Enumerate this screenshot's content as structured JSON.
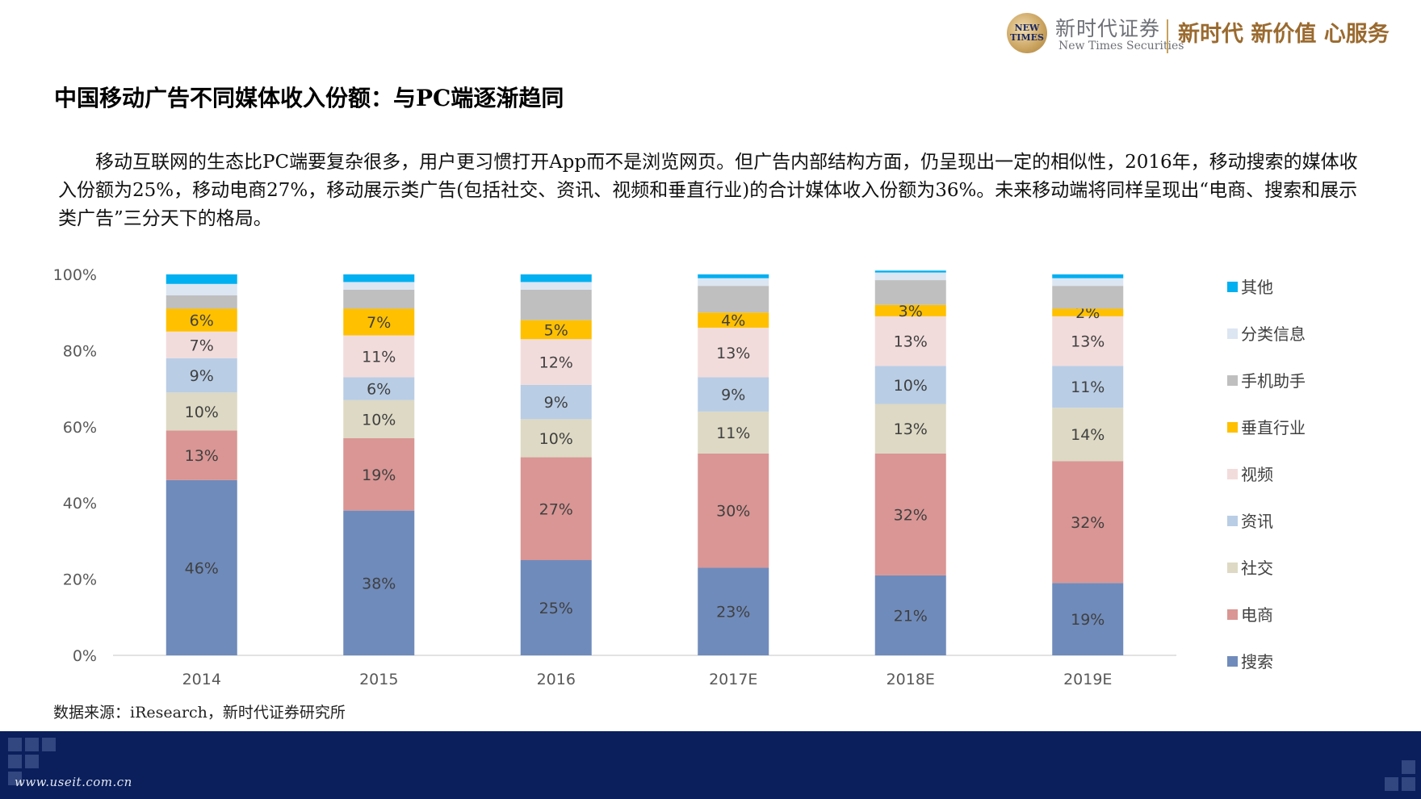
{
  "brand": {
    "seal_text": "NEW TIMES",
    "name_cn": "新时代证券",
    "name_en": "New Times Securities",
    "slogan": "新时代 新价值 心服务"
  },
  "page_title": "中国移动广告不同媒体收入份额：与PC端逐渐趋同",
  "intro_text": "移动互联网的生态比PC端要复杂很多，用户更习惯打开App而不是浏览网页。但广告内部结构方面，仍呈现出一定的相似性，2016年，移动搜索的媒体收入份额为25%，移动电商27%，移动展示类广告(包括社交、资讯、视频和垂直行业)的合计媒体收入份额为36%。未来移动端将同样呈现出“电商、搜索和展示类广告”三分天下的格局。",
  "source_text": "数据来源：iResearch，新时代证券研究所",
  "footer_url": "www.useit.com.cn",
  "chart_data": {
    "type": "bar",
    "stacked": true,
    "categories": [
      "2014",
      "2015",
      "2016",
      "2017E",
      "2018E",
      "2019E"
    ],
    "y_ticks": [
      "0%",
      "20%",
      "40%",
      "60%",
      "80%",
      "100%"
    ],
    "ylim": [
      0,
      100
    ],
    "grid": false,
    "legend_position": "right",
    "series": [
      {
        "name": "搜索",
        "color": "#6f8bbb",
        "values": [
          46,
          38,
          25,
          23,
          21,
          19
        ],
        "labels": [
          "46%",
          "38%",
          "25%",
          "23%",
          "21%",
          "19%"
        ]
      },
      {
        "name": "电商",
        "color": "#d99694",
        "values": [
          13,
          19,
          27,
          30,
          32,
          32
        ],
        "labels": [
          "13%",
          "19%",
          "27%",
          "30%",
          "32%",
          "32%"
        ]
      },
      {
        "name": "社交",
        "color": "#ddd9c4",
        "values": [
          10,
          10,
          10,
          11,
          13,
          14
        ],
        "labels": [
          "10%",
          "10%",
          "10%",
          "11%",
          "13%",
          "14%"
        ]
      },
      {
        "name": "资讯",
        "color": "#b9cde5",
        "values": [
          9,
          6,
          9,
          9,
          10,
          11
        ],
        "labels": [
          "9%",
          "6%",
          "9%",
          "9%",
          "10%",
          "11%"
        ]
      },
      {
        "name": "视频",
        "color": "#f2dcdb",
        "values": [
          7,
          11,
          12,
          13,
          13,
          13
        ],
        "labels": [
          "7%",
          "11%",
          "12%",
          "13%",
          "13%",
          "13%"
        ]
      },
      {
        "name": "垂直行业",
        "color": "#ffc000",
        "values": [
          6,
          7,
          5,
          4,
          3,
          2
        ],
        "labels": [
          "6%",
          "7%",
          "5%",
          "4%",
          "3%",
          "2%"
        ]
      },
      {
        "name": "手机助手",
        "color": "#bfbfbf",
        "values": [
          3.5,
          5,
          8,
          7,
          6.5,
          6
        ],
        "labels": [
          "",
          "",
          "",
          "",
          "",
          ""
        ]
      },
      {
        "name": "分类信息",
        "color": "#dce6f2",
        "values": [
          3,
          2,
          2,
          2,
          2,
          2
        ],
        "labels": [
          "",
          "",
          "",
          "",
          "",
          ""
        ]
      },
      {
        "name": "其他",
        "color": "#00b0f0",
        "values": [
          2.5,
          2,
          2,
          1,
          0.5,
          1
        ],
        "labels": [
          "",
          "",
          "",
          "",
          "",
          ""
        ]
      }
    ]
  }
}
